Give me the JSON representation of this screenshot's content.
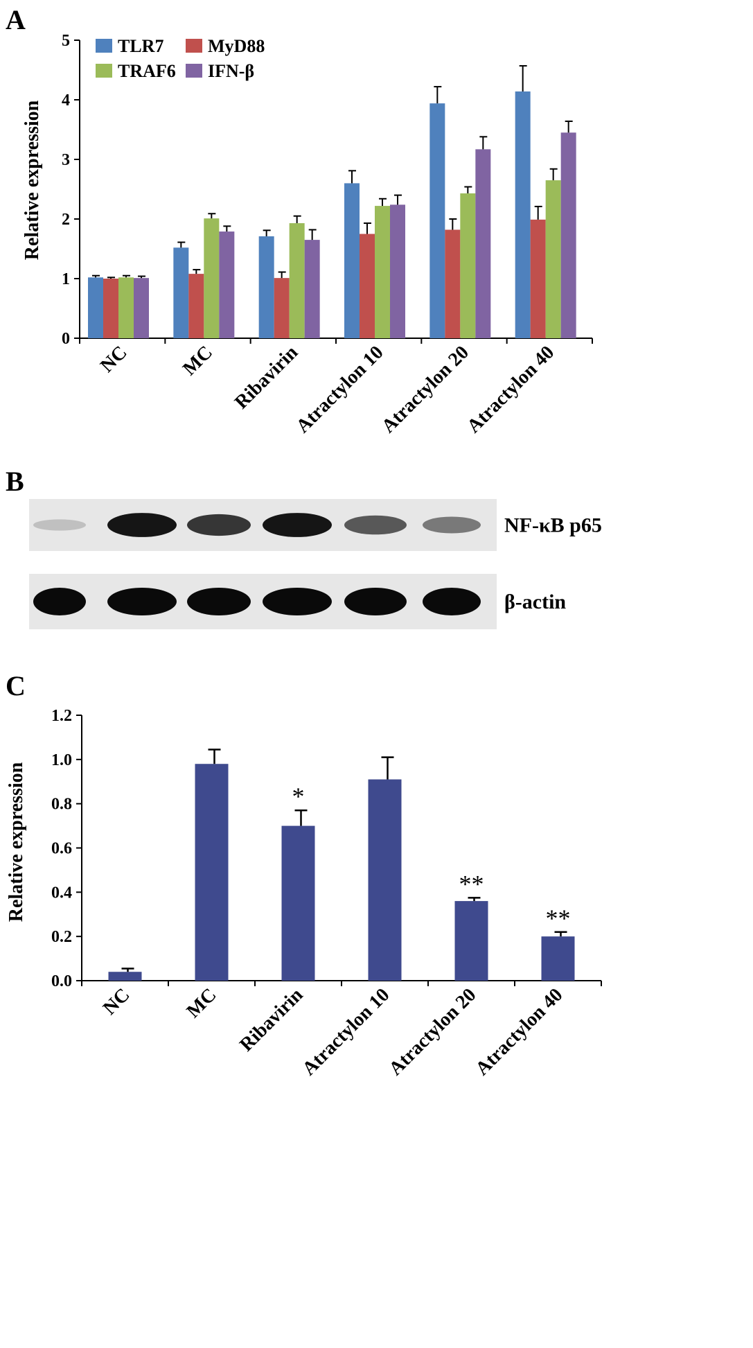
{
  "chart_data": [
    {
      "panel": "A",
      "type": "bar",
      "ylabel": "Relative expression",
      "ylim": [
        0,
        5
      ],
      "yticks": [
        "0",
        "1",
        "2",
        "3",
        "4",
        "5"
      ],
      "categories": [
        "NC",
        "MC",
        "Ribavirin",
        "Atractylon 10",
        "Atractylon 20",
        "Atractylon 40"
      ],
      "legend_placement": "top-left",
      "series": [
        {
          "name": "TLR7",
          "color": "#4f81bd",
          "values": [
            1.02,
            1.52,
            1.71,
            2.6,
            3.94,
            4.14
          ],
          "errors": [
            0.03,
            0.09,
            0.1,
            0.21,
            0.28,
            0.43
          ]
        },
        {
          "name": "MyD88",
          "color": "#c0504d",
          "values": [
            1.0,
            1.08,
            1.01,
            1.75,
            1.82,
            1.99
          ],
          "errors": [
            0.02,
            0.07,
            0.1,
            0.18,
            0.18,
            0.22
          ]
        },
        {
          "name": "TRAF6",
          "color": "#9bbb59",
          "values": [
            1.02,
            2.01,
            1.93,
            2.22,
            2.43,
            2.65
          ],
          "errors": [
            0.03,
            0.08,
            0.12,
            0.12,
            0.11,
            0.19
          ]
        },
        {
          "name": "IFN-β",
          "color": "#8064a2",
          "values": [
            1.01,
            1.79,
            1.65,
            2.24,
            3.17,
            3.45
          ],
          "errors": [
            0.03,
            0.09,
            0.17,
            0.16,
            0.21,
            0.19
          ]
        }
      ]
    },
    {
      "panel": "B",
      "type": "western-blot",
      "lanes": 6,
      "rows": [
        {
          "label": "NF-κB p65",
          "intensities": [
            0.18,
            0.95,
            0.8,
            0.95,
            0.65,
            0.5
          ]
        },
        {
          "label": "β-actin",
          "intensities": [
            1.0,
            1.0,
            1.0,
            1.0,
            1.0,
            1.0
          ]
        }
      ]
    },
    {
      "panel": "C",
      "type": "bar",
      "ylabel": "Relative expression",
      "ylim": [
        0,
        1.2
      ],
      "yticks": [
        "0.0",
        "0.2",
        "0.4",
        "0.6",
        "0.8",
        "1.0",
        "1.2"
      ],
      "categories": [
        "NC",
        "MC",
        "Ribavirin",
        "Atractylon 10",
        "Atractylon 20",
        "Atractylon 40"
      ],
      "color": "#3f4a8e",
      "values": [
        0.04,
        0.98,
        0.7,
        0.91,
        0.36,
        0.2
      ],
      "errors": [
        0.015,
        0.065,
        0.07,
        0.1,
        0.015,
        0.02
      ],
      "annotations": [
        "",
        "",
        "*",
        "",
        "**",
        "**"
      ]
    }
  ]
}
